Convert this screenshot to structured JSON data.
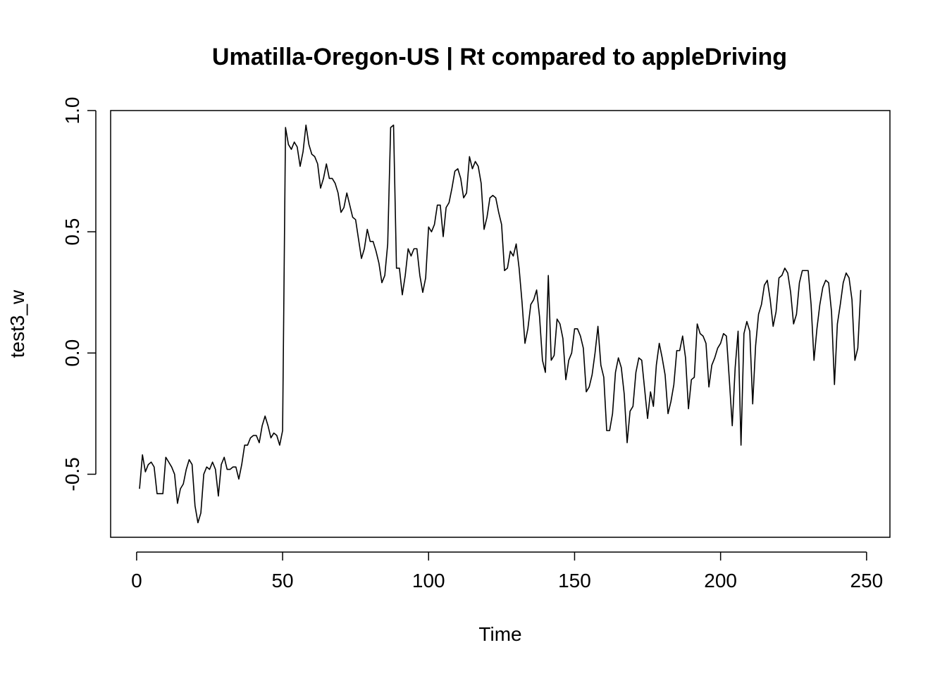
{
  "chart_data": {
    "type": "line",
    "title": "Umatilla-Oregon-US | Rt compared to appleDriving",
    "xlabel": "Time",
    "ylabel": "test3_w",
    "xlim": [
      -8.9,
      258
    ],
    "ylim": [
      -0.76,
      1.0
    ],
    "x_ticks": [
      0,
      50,
      100,
      150,
      200,
      250
    ],
    "x_tick_labels": [
      "0",
      "50",
      "100",
      "150",
      "200",
      "250"
    ],
    "y_ticks": [
      -0.5,
      0.0,
      0.5,
      1.0
    ],
    "y_tick_labels": [
      "-0.5",
      "0.0",
      "0.5",
      "1.0"
    ],
    "grid": false,
    "line_color": "#000000",
    "series": [
      {
        "x_start": 1,
        "values": [
          -0.56,
          -0.42,
          -0.49,
          -0.46,
          -0.45,
          -0.47,
          -0.58,
          -0.58,
          -0.58,
          -0.43,
          -0.45,
          -0.47,
          -0.5,
          -0.62,
          -0.56,
          -0.54,
          -0.48,
          -0.44,
          -0.46,
          -0.63,
          -0.7,
          -0.66,
          -0.5,
          -0.47,
          -0.48,
          -0.45,
          -0.48,
          -0.59,
          -0.46,
          -0.43,
          -0.48,
          -0.48,
          -0.47,
          -0.47,
          -0.52,
          -0.46,
          -0.38,
          -0.38,
          -0.35,
          -0.34,
          -0.34,
          -0.37,
          -0.3,
          -0.26,
          -0.3,
          -0.35,
          -0.33,
          -0.34,
          -0.38,
          -0.32,
          0.93,
          0.86,
          0.84,
          0.87,
          0.85,
          0.77,
          0.83,
          0.94,
          0.86,
          0.82,
          0.81,
          0.78,
          0.68,
          0.72,
          0.78,
          0.72,
          0.72,
          0.7,
          0.66,
          0.58,
          0.6,
          0.66,
          0.61,
          0.56,
          0.55,
          0.47,
          0.39,
          0.43,
          0.51,
          0.46,
          0.46,
          0.42,
          0.37,
          0.29,
          0.32,
          0.45,
          0.93,
          0.94,
          0.35,
          0.35,
          0.24,
          0.32,
          0.43,
          0.4,
          0.43,
          0.43,
          0.32,
          0.25,
          0.31,
          0.52,
          0.5,
          0.53,
          0.61,
          0.61,
          0.48,
          0.6,
          0.62,
          0.68,
          0.75,
          0.76,
          0.72,
          0.64,
          0.66,
          0.81,
          0.76,
          0.79,
          0.77,
          0.7,
          0.51,
          0.56,
          0.64,
          0.65,
          0.64,
          0.58,
          0.53,
          0.34,
          0.35,
          0.42,
          0.4,
          0.45,
          0.35,
          0.21,
          0.04,
          0.1,
          0.2,
          0.22,
          0.26,
          0.15,
          -0.03,
          -0.08,
          0.32,
          -0.03,
          -0.01,
          0.14,
          0.12,
          0.06,
          -0.11,
          -0.03,
          0.0,
          0.1,
          0.1,
          0.07,
          0.02,
          -0.16,
          -0.14,
          -0.09,
          0.0,
          0.11,
          -0.05,
          -0.1,
          -0.32,
          -0.32,
          -0.25,
          -0.08,
          -0.02,
          -0.06,
          -0.17,
          -0.37,
          -0.24,
          -0.22,
          -0.08,
          -0.02,
          -0.03,
          -0.15,
          -0.27,
          -0.16,
          -0.22,
          -0.05,
          0.04,
          -0.02,
          -0.09,
          -0.25,
          -0.2,
          -0.13,
          0.01,
          0.01,
          0.07,
          -0.02,
          -0.23,
          -0.11,
          -0.1,
          0.12,
          0.08,
          0.07,
          0.04,
          -0.14,
          -0.05,
          -0.02,
          0.02,
          0.04,
          0.08,
          0.07,
          -0.11,
          -0.3,
          -0.06,
          0.09,
          -0.38,
          0.08,
          0.13,
          0.09,
          -0.21,
          0.03,
          0.16,
          0.2,
          0.28,
          0.3,
          0.22,
          0.11,
          0.17,
          0.31,
          0.32,
          0.35,
          0.33,
          0.25,
          0.12,
          0.16,
          0.29,
          0.34,
          0.34,
          0.34,
          0.2,
          -0.03,
          0.1,
          0.2,
          0.27,
          0.3,
          0.29,
          0.17,
          -0.13,
          0.12,
          0.2,
          0.29,
          0.33,
          0.31,
          0.22,
          -0.03,
          0.02,
          0.26
        ]
      }
    ]
  }
}
